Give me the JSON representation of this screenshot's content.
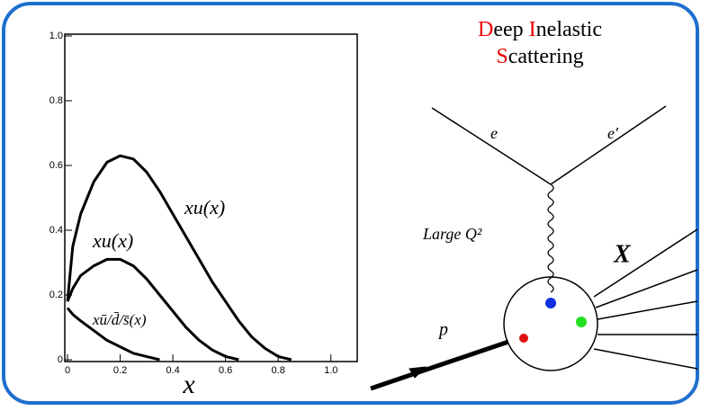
{
  "chart_data": {
    "type": "line",
    "x_label": "x",
    "x": [
      0,
      0.02,
      0.05,
      0.1,
      0.15,
      0.2,
      0.25,
      0.3,
      0.35,
      0.4,
      0.45,
      0.5,
      0.55,
      0.6,
      0.65,
      0.7,
      0.75,
      0.8,
      0.85
    ],
    "series": [
      {
        "name": "xu(x)",
        "color": "#000000",
        "values": [
          0.18,
          0.35,
          0.45,
          0.55,
          0.61,
          0.63,
          0.62,
          0.58,
          0.52,
          0.45,
          0.38,
          0.31,
          0.24,
          0.18,
          0.12,
          0.07,
          0.035,
          0.01,
          0
        ]
      },
      {
        "name": "xu(x)",
        "color": "#000000",
        "values": [
          0.18,
          0.22,
          0.26,
          0.29,
          0.31,
          0.31,
          0.29,
          0.25,
          0.2,
          0.15,
          0.1,
          0.06,
          0.03,
          0.01,
          0,
          null,
          null,
          null,
          null
        ]
      },
      {
        "name": "xū/d̄/s̄(x)",
        "color": "#000000",
        "values": [
          0.16,
          0.14,
          0.12,
          0.09,
          0.06,
          0.04,
          0.02,
          0.01,
          0,
          null,
          null,
          null,
          null,
          null,
          null,
          null,
          null,
          null,
          null
        ]
      }
    ],
    "xlim": [
      0,
      1.1
    ],
    "ylim": [
      0,
      1
    ],
    "xticks": [
      0,
      0.2,
      0.4,
      0.6,
      0.8,
      {
        "value": 1,
        "label": "1.0"
      }
    ],
    "yticks": [
      0,
      0.2,
      0.4,
      0.6,
      0.8,
      {
        "value": 1,
        "label": "1.0"
      }
    ]
  },
  "diagram": {
    "title": [
      "D",
      "eep ",
      "I",
      "nelastic",
      "S",
      "cattering"
    ],
    "labels": {
      "electron_in": "e",
      "electron_out": "e′",
      "momentum": "Large Q²",
      "hadrons": "X",
      "proton": "p"
    }
  }
}
